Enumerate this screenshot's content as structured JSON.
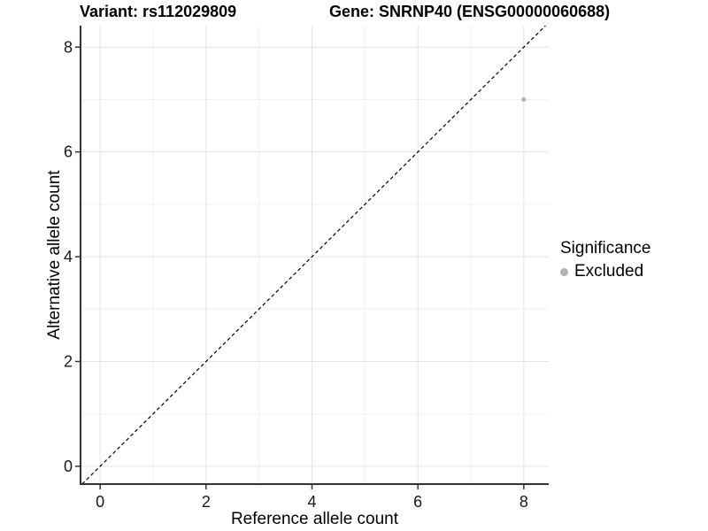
{
  "chart_data": {
    "type": "scatter",
    "titles": {
      "left": "Variant: rs112029809",
      "right": "Gene: SNRNP40 (ENSG00000060688)"
    },
    "xlabel": "Reference allele count",
    "ylabel": "Alternative allele count",
    "xlim": [
      -0.37,
      8.47
    ],
    "ylim": [
      -0.34,
      8.41
    ],
    "x_ticks": [
      0,
      2,
      4,
      6,
      8
    ],
    "y_ticks": [
      0,
      2,
      4,
      6,
      8
    ],
    "x_minor_ticks": [
      1,
      3,
      5,
      7
    ],
    "y_minor_ticks": [
      1,
      3,
      5,
      7
    ],
    "grid": {
      "visible": true,
      "major_color": "#e3e3e3",
      "minor_color": "#f0f0f0"
    },
    "reference_line": {
      "type": "identity",
      "equation": "y = x",
      "style": "dashed",
      "color": "#000000"
    },
    "series": [
      {
        "name": "Excluded",
        "color": "#b3b3b3",
        "marker": "circle",
        "point_radius": 2.5,
        "points": [
          {
            "x": 8,
            "y": 7
          }
        ]
      }
    ],
    "legend": {
      "title": "Significance",
      "position": "right",
      "items": [
        {
          "label": "Excluded",
          "color": "#b3b3b3"
        }
      ]
    },
    "style": {
      "background": "#ffffff",
      "axis_line_color": "#333333",
      "tick_color": "#333333",
      "tick_label_color": "#1a1a1a",
      "text_color": "#000000"
    }
  }
}
